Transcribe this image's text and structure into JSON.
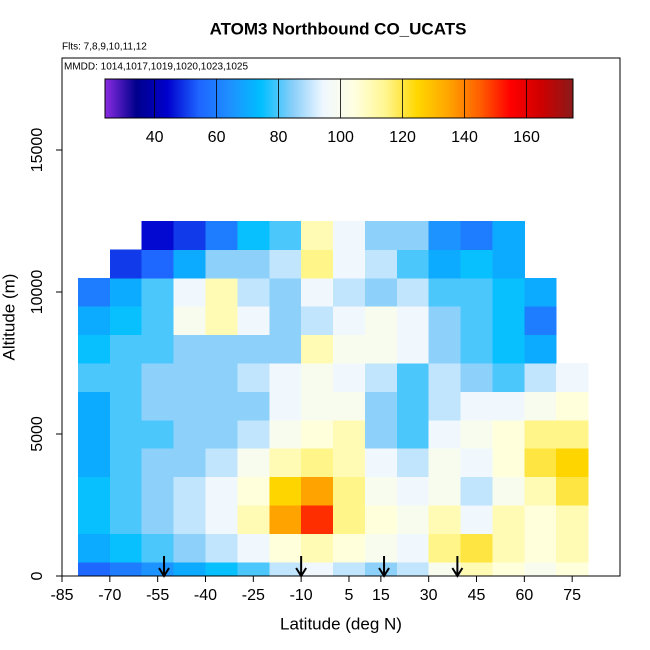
{
  "chart_data": {
    "type": "heatmap",
    "title": "ATOM3 Northbound CO_UCATS",
    "subtitle": "Flts: 7,8,9,10,11,12",
    "annotation": "MMDD: 1014,1017,1019,1020,1023,1025",
    "x_label": "Latitude (deg N)",
    "y_label": "Altitude (m)",
    "xlim": [
      -85,
      90
    ],
    "xticks": [
      -85,
      -70,
      -55,
      -40,
      -25,
      -10,
      5,
      15,
      30,
      45,
      60,
      75
    ],
    "ylim": [
      0,
      18240
    ],
    "yticks": [
      0,
      5000,
      10000,
      15000
    ],
    "x_bins": [
      -80,
      -70,
      -60,
      -50,
      -40,
      -30,
      -20,
      -10,
      0,
      10,
      20,
      30,
      40,
      50,
      60,
      70,
      80
    ],
    "y_bins": [
      0,
      500,
      1500,
      2500,
      3500,
      4500,
      5500,
      6500,
      7500,
      8500,
      9500,
      10500,
      11500,
      12500
    ],
    "z": [
      [
        55,
        60,
        65,
        70,
        75,
        80,
        90,
        95,
        90,
        85,
        90,
        100,
        110,
        105,
        100,
        105
      ],
      [
        70,
        75,
        80,
        85,
        90,
        95,
        105,
        110,
        105,
        100,
        95,
        115,
        120,
        110,
        105,
        110
      ],
      [
        75,
        80,
        85,
        90,
        95,
        110,
        135,
        150,
        115,
        105,
        100,
        110,
        95,
        110,
        105,
        110
      ],
      [
        75,
        80,
        85,
        90,
        95,
        105,
        125,
        135,
        115,
        100,
        95,
        100,
        90,
        100,
        110,
        120
      ],
      [
        70,
        80,
        85,
        85,
        90,
        100,
        110,
        115,
        110,
        95,
        90,
        100,
        95,
        105,
        120,
        125
      ],
      [
        70,
        80,
        80,
        85,
        85,
        90,
        100,
        105,
        110,
        85,
        80,
        95,
        100,
        105,
        115,
        115
      ],
      [
        70,
        80,
        85,
        85,
        85,
        85,
        95,
        100,
        100,
        85,
        80,
        90,
        95,
        95,
        100,
        105
      ],
      [
        80,
        80,
        85,
        85,
        85,
        90,
        95,
        100,
        95,
        90,
        80,
        90,
        85,
        80,
        90,
        95
      ],
      [
        75,
        80,
        80,
        85,
        85,
        85,
        85,
        110,
        100,
        100,
        95,
        85,
        80,
        75,
        70,
        null
      ],
      [
        70,
        75,
        80,
        100,
        110,
        95,
        85,
        90,
        95,
        100,
        95,
        85,
        80,
        75,
        60,
        null
      ],
      [
        60,
        70,
        80,
        95,
        110,
        90,
        85,
        95,
        90,
        85,
        90,
        80,
        80,
        75,
        70,
        null
      ],
      [
        null,
        50,
        55,
        70,
        85,
        85,
        90,
        115,
        95,
        90,
        80,
        70,
        75,
        70,
        null,
        null
      ],
      [
        null,
        null,
        45,
        50,
        60,
        75,
        80,
        110,
        95,
        85,
        85,
        65,
        60,
        70,
        null,
        null
      ]
    ],
    "zlim": [
      24,
      175
    ],
    "zticks": [
      40,
      60,
      80,
      100,
      120,
      140,
      160
    ],
    "colors": [
      "#8a2be2",
      "#00008b",
      "#0000cd",
      "#1e64ff",
      "#1e90ff",
      "#00bfff",
      "#87cefa",
      "#f0f8ff",
      "#ffffe0",
      "#fff68f",
      "#ffd700",
      "#ffa500",
      "#ff6000",
      "#ff0000",
      "#cd0000",
      "#8b1a1a"
    ],
    "arrows_x": [
      -53,
      -10,
      16,
      39
    ]
  }
}
